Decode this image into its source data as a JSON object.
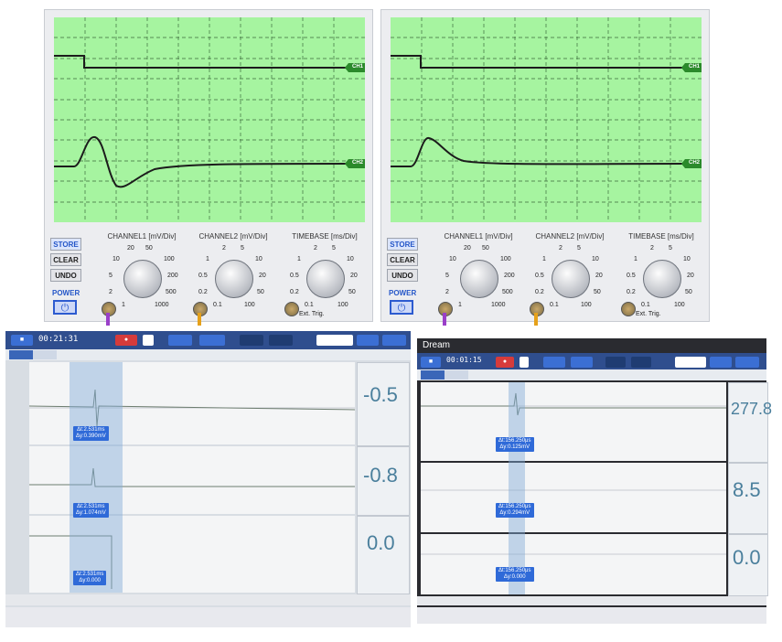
{
  "oscilloscopes": [
    {
      "ch1_label": "CH1",
      "ch2_label": "CH2",
      "buttons": [
        "STORE",
        "CLEAR",
        "UNDO"
      ],
      "power_label": "POWER",
      "power_icon": "⏻",
      "knobs": [
        {
          "title": "CHANNEL1 [mV/Div]",
          "ticks": [
            "20",
            "50",
            "10",
            "100",
            "5",
            "200",
            "2",
            "500",
            "1",
            "1000"
          ]
        },
        {
          "title": "CHANNEL2 [mV/Div]",
          "ticks": [
            "2",
            "5",
            "1",
            "10",
            "0.5",
            "20",
            "0.2",
            "50",
            "0.1",
            "100"
          ]
        },
        {
          "title": "TIMEBASE [ms/Div]",
          "ticks": [
            "2",
            "5",
            "1",
            "10",
            "0.5",
            "20",
            "0.2",
            "50",
            "0.1",
            "100"
          ]
        }
      ],
      "ext_trig": "Ext. Trig."
    },
    {
      "ch1_label": "CH1",
      "ch2_label": "CH2",
      "buttons": [
        "STORE",
        "CLEAR",
        "UNDO"
      ],
      "power_label": "POWER",
      "power_icon": "⏻",
      "knobs": [
        {
          "title": "CHANNEL1 [mV/Div]",
          "ticks": [
            "20",
            "50",
            "10",
            "100",
            "5",
            "200",
            "2",
            "500",
            "1",
            "1000"
          ]
        },
        {
          "title": "CHANNEL2 [mV/Div]",
          "ticks": [
            "2",
            "5",
            "1",
            "10",
            "0.5",
            "20",
            "0.2",
            "50",
            "0.1",
            "100"
          ]
        },
        {
          "title": "TIMEBASE [ms/Div]",
          "ticks": [
            "2",
            "5",
            "1",
            "10",
            "0.5",
            "20",
            "0.2",
            "50",
            "0.1",
            "100"
          ]
        }
      ],
      "ext_trig": "Ext. Trig."
    }
  ],
  "software_left": {
    "timer": "00:21:31",
    "cursor_labels": [
      {
        "dt": "Δt:2.531ms",
        "dy": "Δy:0.390mV"
      },
      {
        "dt": "Δt:2.531ms",
        "dy": "Δy:1.074mV"
      },
      {
        "dt": "Δt:2.531ms",
        "dy": "Δy:0.000"
      }
    ],
    "big_values": [
      "-0.5",
      "-0.8",
      "0.0"
    ]
  },
  "software_right": {
    "app_name": "Dream",
    "timer": "00:01:15",
    "cursor_labels": [
      {
        "dt": "Δt:156.250μs",
        "dy": "Δy:0.125mV"
      },
      {
        "dt": "Δt:156.250μs",
        "dy": "Δy:0.294mV"
      },
      {
        "dt": "Δt:156.250μs",
        "dy": "Δy:0.000"
      }
    ],
    "big_values": [
      "277.8",
      "8.5",
      "0.0"
    ]
  },
  "colors": {
    "screen": "#a6f4a0",
    "trace": "#1c1c1c",
    "ch_tag": "#2b8a2b",
    "accent": "#2f6ad8"
  }
}
